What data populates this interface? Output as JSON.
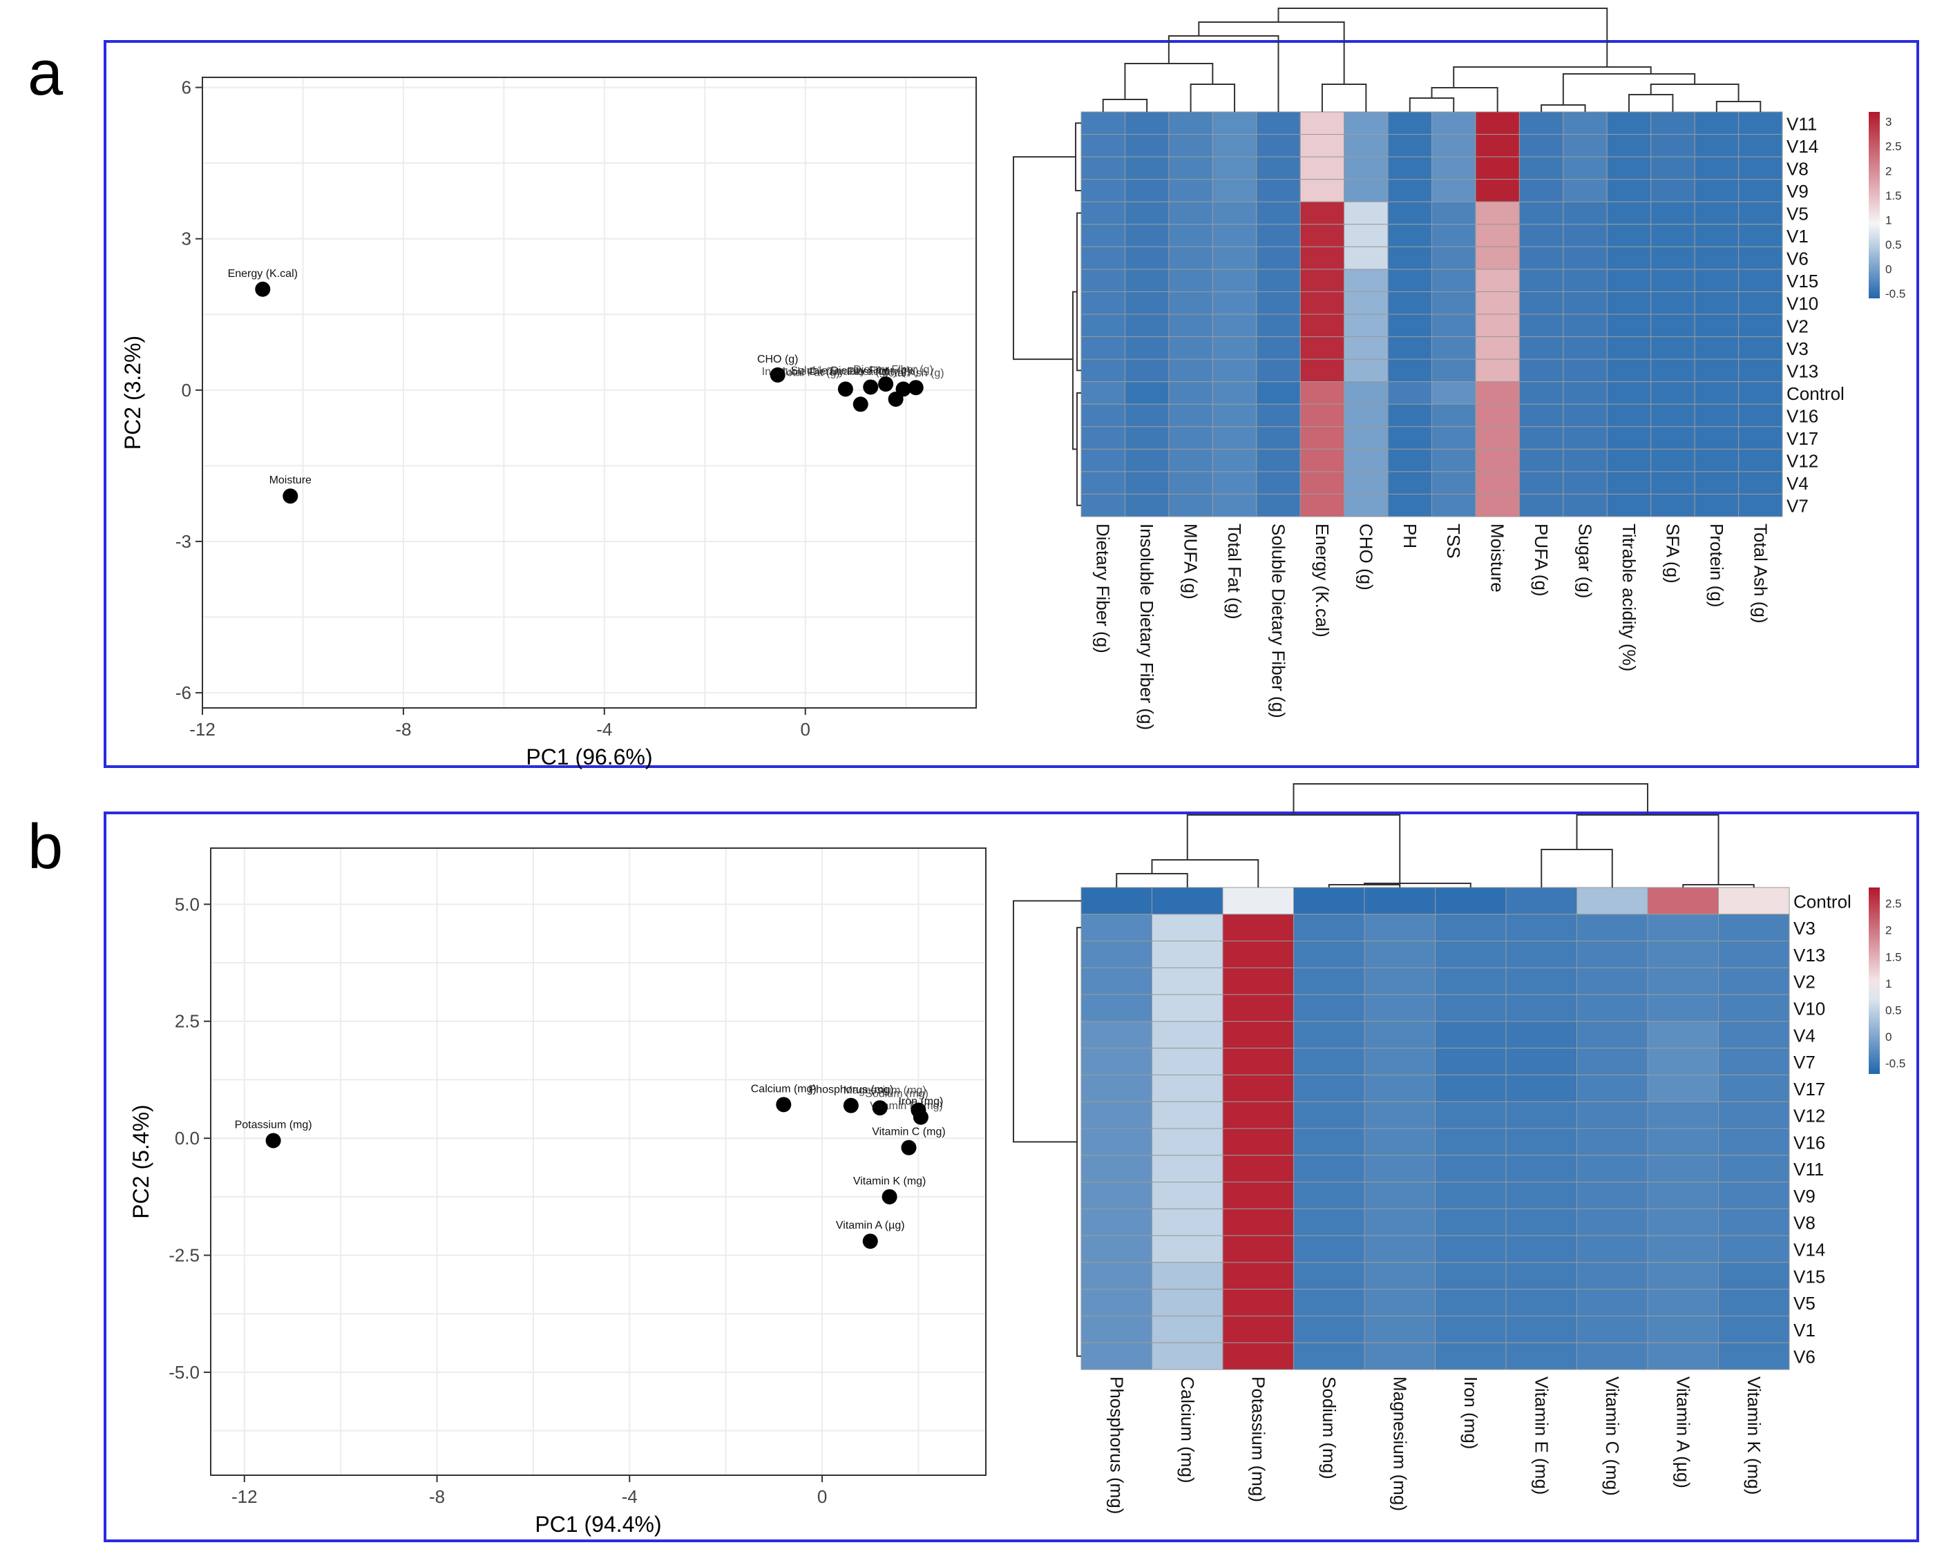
{
  "panels": [
    {
      "letter": "a"
    },
    {
      "letter": "b"
    }
  ],
  "colors": {
    "frame": "#2b2bdf",
    "heat_low": "#2166ac",
    "heat_mid": "#f7f7f7",
    "heat_high": "#b2182b",
    "point": "#000000"
  },
  "chart_data": [
    {
      "type": "scatter",
      "panel": "a",
      "xlabel": "PC1 (96.6%)",
      "ylabel": "PC2 (3.2%)",
      "xlim": [
        -12,
        3.4
      ],
      "ylim": [
        -6.3,
        6.2
      ],
      "xticks": [
        -12,
        -8,
        -4,
        0
      ],
      "yticks": [
        -6,
        -3,
        0,
        3,
        6
      ],
      "points": [
        {
          "label": "Energy (K.cal)",
          "x": -10.8,
          "y": 2.0
        },
        {
          "label": "Moisture",
          "x": -10.25,
          "y": -2.1
        },
        {
          "label": "CHO (g)",
          "x": -0.55,
          "y": 0.3
        },
        {
          "label": "",
          "x": 0.8,
          "y": 0.02
        },
        {
          "label": "",
          "x": 1.1,
          "y": -0.28
        },
        {
          "label": "",
          "x": 1.3,
          "y": 0.06
        },
        {
          "label": "",
          "x": 1.6,
          "y": 0.12
        },
        {
          "label": "",
          "x": 1.8,
          "y": -0.18
        },
        {
          "label": "",
          "x": 1.95,
          "y": 0.02
        },
        {
          "label": "",
          "x": 2.2,
          "y": 0.05
        }
      ],
      "overlap_labels": [
        {
          "text": "Total Fat (g)",
          "x": 0.1,
          "y": 0.28
        },
        {
          "text": "Insoluble Dietary Fiber (g)",
          "x": 0.4,
          "y": 0.3
        },
        {
          "text": "Soluble Dietary Fiber (g)",
          "x": 0.9,
          "y": 0.32
        },
        {
          "text": "Titrable acidity (%)",
          "x": 1.35,
          "y": 0.3
        },
        {
          "text": "Dietary Fiber (g)",
          "x": 1.75,
          "y": 0.34
        },
        {
          "text": "Total Ash (g)",
          "x": 2.15,
          "y": 0.27
        }
      ]
    },
    {
      "type": "heatmap",
      "panel": "a",
      "columns": [
        "Dietary Fiber (g)",
        "Insoluble Dietary Fiber (g)",
        "MUFA (g)",
        "Total Fat (g)",
        "Soluble Dietary Fiber (g)",
        "Energy (K.cal)",
        "CHO (g)",
        "PH",
        "TSS",
        "Moisture",
        "PUFA (g)",
        "Sugar (g)",
        "Titrable acidity (%)",
        "SFA (g)",
        "Protein (g)",
        "Total Ash (g)"
      ],
      "rows": [
        "V11",
        "V14",
        "V8",
        "V9",
        "V5",
        "V1",
        "V6",
        "V15",
        "V10",
        "V2",
        "V3",
        "V13",
        "Control",
        "V16",
        "V17",
        "V12",
        "V4",
        "V7"
      ],
      "values": [
        [
          -0.35,
          -0.4,
          -0.3,
          -0.2,
          -0.4,
          1.35,
          -0.05,
          -0.45,
          -0.15,
          3.1,
          -0.4,
          -0.3,
          -0.45,
          -0.4,
          -0.45,
          -0.45
        ],
        [
          -0.35,
          -0.4,
          -0.3,
          -0.2,
          -0.4,
          1.35,
          -0.05,
          -0.45,
          -0.15,
          3.1,
          -0.4,
          -0.3,
          -0.45,
          -0.4,
          -0.45,
          -0.45
        ],
        [
          -0.35,
          -0.4,
          -0.3,
          -0.2,
          -0.4,
          1.35,
          -0.05,
          -0.45,
          -0.15,
          3.1,
          -0.4,
          -0.3,
          -0.45,
          -0.4,
          -0.45,
          -0.45
        ],
        [
          -0.35,
          -0.4,
          -0.3,
          -0.2,
          -0.4,
          1.35,
          -0.05,
          -0.45,
          -0.15,
          3.1,
          -0.4,
          -0.3,
          -0.45,
          -0.4,
          -0.45,
          -0.45
        ],
        [
          -0.35,
          -0.4,
          -0.3,
          -0.25,
          -0.4,
          3.0,
          0.6,
          -0.45,
          -0.3,
          1.8,
          -0.4,
          -0.4,
          -0.45,
          -0.45,
          -0.45,
          -0.45
        ],
        [
          -0.35,
          -0.4,
          -0.3,
          -0.25,
          -0.4,
          3.0,
          0.6,
          -0.45,
          -0.3,
          1.8,
          -0.4,
          -0.4,
          -0.45,
          -0.45,
          -0.45,
          -0.45
        ],
        [
          -0.35,
          -0.4,
          -0.3,
          -0.25,
          -0.4,
          3.0,
          0.6,
          -0.45,
          -0.3,
          1.8,
          -0.4,
          -0.4,
          -0.45,
          -0.45,
          -0.45,
          -0.45
        ],
        [
          -0.35,
          -0.4,
          -0.3,
          -0.25,
          -0.4,
          3.0,
          0.2,
          -0.45,
          -0.3,
          1.6,
          -0.4,
          -0.4,
          -0.45,
          -0.45,
          -0.45,
          -0.45
        ],
        [
          -0.35,
          -0.4,
          -0.3,
          -0.25,
          -0.4,
          3.0,
          0.2,
          -0.45,
          -0.3,
          1.6,
          -0.4,
          -0.4,
          -0.45,
          -0.45,
          -0.45,
          -0.45
        ],
        [
          -0.35,
          -0.4,
          -0.3,
          -0.25,
          -0.4,
          3.0,
          0.2,
          -0.45,
          -0.3,
          1.6,
          -0.4,
          -0.4,
          -0.45,
          -0.45,
          -0.45,
          -0.45
        ],
        [
          -0.35,
          -0.4,
          -0.3,
          -0.25,
          -0.4,
          3.0,
          0.2,
          -0.45,
          -0.3,
          1.6,
          -0.4,
          -0.4,
          -0.45,
          -0.45,
          -0.45,
          -0.45
        ],
        [
          -0.35,
          -0.4,
          -0.3,
          -0.25,
          -0.4,
          3.0,
          0.2,
          -0.45,
          -0.3,
          1.6,
          -0.4,
          -0.4,
          -0.45,
          -0.45,
          -0.45,
          -0.45
        ],
        [
          -0.3,
          -0.45,
          -0.3,
          -0.25,
          -0.45,
          2.4,
          0.0,
          -0.35,
          -0.15,
          2.1,
          -0.4,
          -0.4,
          -0.45,
          -0.45,
          -0.45,
          -0.45
        ],
        [
          -0.35,
          -0.4,
          -0.3,
          -0.25,
          -0.4,
          2.4,
          0.0,
          -0.45,
          -0.3,
          2.1,
          -0.4,
          -0.4,
          -0.45,
          -0.45,
          -0.45,
          -0.45
        ],
        [
          -0.35,
          -0.4,
          -0.3,
          -0.25,
          -0.4,
          2.4,
          0.0,
          -0.45,
          -0.3,
          2.1,
          -0.4,
          -0.4,
          -0.45,
          -0.45,
          -0.45,
          -0.45
        ],
        [
          -0.35,
          -0.4,
          -0.3,
          -0.25,
          -0.4,
          2.4,
          0.0,
          -0.45,
          -0.3,
          2.1,
          -0.4,
          -0.4,
          -0.45,
          -0.45,
          -0.45,
          -0.45
        ],
        [
          -0.35,
          -0.4,
          -0.3,
          -0.25,
          -0.4,
          2.4,
          0.0,
          -0.45,
          -0.3,
          2.1,
          -0.4,
          -0.4,
          -0.45,
          -0.45,
          -0.45,
          -0.45
        ],
        [
          -0.35,
          -0.4,
          -0.3,
          -0.25,
          -0.4,
          2.4,
          0.0,
          -0.45,
          -0.3,
          2.1,
          -0.4,
          -0.4,
          -0.45,
          -0.45,
          -0.45,
          -0.45
        ]
      ],
      "legend": {
        "ticks": [
          "3",
          "2.5",
          "2",
          "1.5",
          "1",
          "0.5",
          "0",
          "-0.5"
        ],
        "tick_values": [
          3,
          2.5,
          2,
          1.5,
          1,
          0.5,
          0,
          -0.5
        ],
        "range": [
          -0.6,
          3.2
        ]
      }
    },
    {
      "type": "scatter",
      "panel": "b",
      "xlabel": "PC1 (94.4%)",
      "ylabel": "PC2 (5.4%)",
      "xlim": [
        -12.7,
        3.4
      ],
      "ylim": [
        -7.2,
        6.2
      ],
      "xticks": [
        -12,
        -8,
        -4,
        0
      ],
      "yticks": [
        -5.0,
        -2.5,
        0.0,
        2.5,
        5.0
      ],
      "ytick_labels": [
        "-5.0",
        "-2.5",
        "0.0",
        "2.5",
        "5.0"
      ],
      "points": [
        {
          "label": "Potassium (mg)",
          "x": -11.4,
          "y": -0.05
        },
        {
          "label": "Calcium (mg)",
          "x": -0.8,
          "y": 0.72
        },
        {
          "label": "Phosphorus (mg)",
          "x": 0.6,
          "y": 0.7
        },
        {
          "label": "",
          "x": 1.2,
          "y": 0.65
        },
        {
          "label": "",
          "x": 2.0,
          "y": 0.6
        },
        {
          "label": "Iron (mg)",
          "x": 2.05,
          "y": 0.45
        },
        {
          "label": "Vitamin C (mg)",
          "x": 1.8,
          "y": -0.2
        },
        {
          "label": "Vitamin K (mg)",
          "x": 1.4,
          "y": -1.25
        },
        {
          "label": "Vitamin A (µg)",
          "x": 1.0,
          "y": -2.2
        }
      ],
      "overlap_labels": [
        {
          "text": "Magnesium (mg)",
          "x": 1.3,
          "y": 0.95
        },
        {
          "text": "Sodium (mg)",
          "x": 1.55,
          "y": 0.88
        },
        {
          "text": "Vitamin E (mg)",
          "x": 1.75,
          "y": 0.62
        }
      ]
    },
    {
      "type": "heatmap",
      "panel": "b",
      "columns": [
        "Phosphorus (mg)",
        "Calcium (mg)",
        "Potassium (mg)",
        "Sodium (mg)",
        "Magnesium (mg)",
        "Iron (mg)",
        "Vitamin E (mg)",
        "Vitamin C (mg)",
        "Vitamin A (µg)",
        "Vitamin K (mg)"
      ],
      "rows": [
        "Control",
        "V3",
        "V13",
        "V2",
        "V10",
        "V4",
        "V7",
        "V17",
        "V12",
        "V16",
        "V11",
        "V9",
        "V8",
        "V14",
        "V15",
        "V5",
        "V1",
        "V6"
      ],
      "values": [
        [
          -0.6,
          -0.6,
          0.8,
          -0.6,
          -0.6,
          -0.6,
          -0.5,
          0.3,
          2.1,
          1.1
        ],
        [
          -0.3,
          0.55,
          2.7,
          -0.45,
          -0.35,
          -0.45,
          -0.45,
          -0.4,
          -0.35,
          -0.4
        ],
        [
          -0.3,
          0.55,
          2.7,
          -0.45,
          -0.35,
          -0.45,
          -0.45,
          -0.4,
          -0.35,
          -0.4
        ],
        [
          -0.3,
          0.55,
          2.7,
          -0.45,
          -0.35,
          -0.45,
          -0.45,
          -0.4,
          -0.35,
          -0.4
        ],
        [
          -0.3,
          0.55,
          2.7,
          -0.45,
          -0.35,
          -0.45,
          -0.45,
          -0.4,
          -0.35,
          -0.4
        ],
        [
          -0.2,
          0.5,
          2.7,
          -0.45,
          -0.35,
          -0.5,
          -0.5,
          -0.4,
          -0.25,
          -0.4
        ],
        [
          -0.2,
          0.5,
          2.7,
          -0.45,
          -0.35,
          -0.5,
          -0.5,
          -0.4,
          -0.25,
          -0.4
        ],
        [
          -0.2,
          0.5,
          2.7,
          -0.45,
          -0.35,
          -0.5,
          -0.5,
          -0.4,
          -0.25,
          -0.4
        ],
        [
          -0.2,
          0.5,
          2.7,
          -0.45,
          -0.35,
          -0.45,
          -0.45,
          -0.4,
          -0.35,
          -0.4
        ],
        [
          -0.2,
          0.5,
          2.7,
          -0.45,
          -0.35,
          -0.45,
          -0.45,
          -0.4,
          -0.35,
          -0.4
        ],
        [
          -0.2,
          0.5,
          2.7,
          -0.45,
          -0.35,
          -0.45,
          -0.45,
          -0.4,
          -0.35,
          -0.4
        ],
        [
          -0.2,
          0.5,
          2.7,
          -0.45,
          -0.35,
          -0.45,
          -0.45,
          -0.4,
          -0.35,
          -0.4
        ],
        [
          -0.2,
          0.5,
          2.7,
          -0.45,
          -0.35,
          -0.45,
          -0.45,
          -0.4,
          -0.35,
          -0.4
        ],
        [
          -0.2,
          0.5,
          2.7,
          -0.45,
          -0.35,
          -0.45,
          -0.45,
          -0.4,
          -0.35,
          -0.4
        ],
        [
          -0.2,
          0.35,
          2.7,
          -0.45,
          -0.35,
          -0.45,
          -0.45,
          -0.4,
          -0.35,
          -0.45
        ],
        [
          -0.2,
          0.35,
          2.7,
          -0.45,
          -0.35,
          -0.45,
          -0.45,
          -0.4,
          -0.35,
          -0.45
        ],
        [
          -0.2,
          0.35,
          2.7,
          -0.45,
          -0.35,
          -0.45,
          -0.45,
          -0.4,
          -0.35,
          -0.45
        ],
        [
          -0.2,
          0.35,
          2.7,
          -0.45,
          -0.35,
          -0.45,
          -0.45,
          -0.4,
          -0.35,
          -0.45
        ]
      ],
      "legend": {
        "ticks": [
          "2.5",
          "2",
          "1.5",
          "1",
          "0.5",
          "0",
          "-0.5"
        ],
        "tick_values": [
          2.5,
          2,
          1.5,
          1,
          0.5,
          0,
          -0.5
        ],
        "range": [
          -0.7,
          2.8
        ]
      }
    }
  ]
}
